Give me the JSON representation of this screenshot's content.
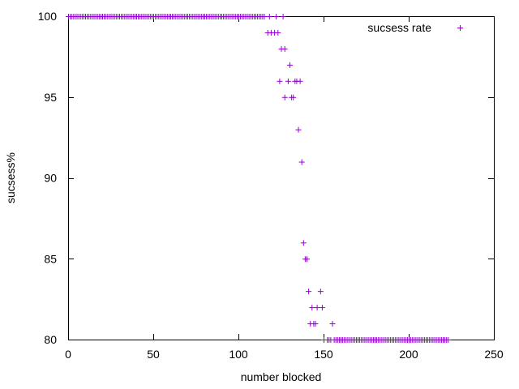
{
  "chart_data": {
    "type": "scatter",
    "xlabel": "number blocked",
    "ylabel": "sucsess%",
    "xlim": [
      0,
      250
    ],
    "ylim": [
      80,
      100
    ],
    "xticks": [
      0,
      50,
      100,
      150,
      200,
      250
    ],
    "yticks": [
      80,
      85,
      90,
      95,
      100
    ],
    "grid": false,
    "legend_position": "top-right",
    "colors": {
      "series": "#9400d3",
      "axis": "#000000",
      "background": "#ffffff"
    },
    "series": [
      {
        "name": "sucsess rate",
        "marker": "plus",
        "points": [
          [
            0,
            100
          ],
          [
            1,
            100
          ],
          [
            2,
            100
          ],
          [
            3,
            100
          ],
          [
            4,
            100
          ],
          [
            5,
            100
          ],
          [
            6,
            100
          ],
          [
            7,
            100
          ],
          [
            8,
            100
          ],
          [
            9,
            100
          ],
          [
            10,
            100
          ],
          [
            11,
            100
          ],
          [
            12,
            100
          ],
          [
            13,
            100
          ],
          [
            14,
            100
          ],
          [
            15,
            100
          ],
          [
            16,
            100
          ],
          [
            17,
            100
          ],
          [
            18,
            100
          ],
          [
            19,
            100
          ],
          [
            20,
            100
          ],
          [
            21,
            100
          ],
          [
            22,
            100
          ],
          [
            23,
            100
          ],
          [
            24,
            100
          ],
          [
            25,
            100
          ],
          [
            26,
            100
          ],
          [
            27,
            100
          ],
          [
            28,
            100
          ],
          [
            29,
            100
          ],
          [
            30,
            100
          ],
          [
            31,
            100
          ],
          [
            32,
            100
          ],
          [
            33,
            100
          ],
          [
            34,
            100
          ],
          [
            35,
            100
          ],
          [
            36,
            100
          ],
          [
            37,
            100
          ],
          [
            38,
            100
          ],
          [
            39,
            100
          ],
          [
            40,
            100
          ],
          [
            41,
            100
          ],
          [
            42,
            100
          ],
          [
            43,
            100
          ],
          [
            44,
            100
          ],
          [
            45,
            100
          ],
          [
            46,
            100
          ],
          [
            47,
            100
          ],
          [
            48,
            100
          ],
          [
            49,
            100
          ],
          [
            50,
            100
          ],
          [
            51,
            100
          ],
          [
            52,
            100
          ],
          [
            53,
            100
          ],
          [
            54,
            100
          ],
          [
            55,
            100
          ],
          [
            56,
            100
          ],
          [
            57,
            100
          ],
          [
            58,
            100
          ],
          [
            59,
            100
          ],
          [
            60,
            100
          ],
          [
            61,
            100
          ],
          [
            62,
            100
          ],
          [
            63,
            100
          ],
          [
            64,
            100
          ],
          [
            65,
            100
          ],
          [
            66,
            100
          ],
          [
            67,
            100
          ],
          [
            68,
            100
          ],
          [
            69,
            100
          ],
          [
            70,
            100
          ],
          [
            71,
            100
          ],
          [
            72,
            100
          ],
          [
            73,
            100
          ],
          [
            74,
            100
          ],
          [
            75,
            100
          ],
          [
            76,
            100
          ],
          [
            77,
            100
          ],
          [
            78,
            100
          ],
          [
            79,
            100
          ],
          [
            80,
            100
          ],
          [
            81,
            100
          ],
          [
            82,
            100
          ],
          [
            83,
            100
          ],
          [
            84,
            100
          ],
          [
            85,
            100
          ],
          [
            86,
            100
          ],
          [
            87,
            100
          ],
          [
            88,
            100
          ],
          [
            89,
            100
          ],
          [
            90,
            100
          ],
          [
            91,
            100
          ],
          [
            92,
            100
          ],
          [
            93,
            100
          ],
          [
            94,
            100
          ],
          [
            95,
            100
          ],
          [
            96,
            100
          ],
          [
            97,
            100
          ],
          [
            98,
            100
          ],
          [
            99,
            100
          ],
          [
            100,
            100
          ],
          [
            101,
            100
          ],
          [
            102,
            100
          ],
          [
            103,
            100
          ],
          [
            104,
            100
          ],
          [
            105,
            100
          ],
          [
            106,
            100
          ],
          [
            107,
            100
          ],
          [
            108,
            100
          ],
          [
            109,
            100
          ],
          [
            110,
            100
          ],
          [
            111,
            100
          ],
          [
            112,
            100
          ],
          [
            113,
            100
          ],
          [
            114,
            100
          ],
          [
            115,
            100
          ],
          [
            118,
            100
          ],
          [
            122,
            100
          ],
          [
            126,
            100
          ],
          [
            117,
            99
          ],
          [
            119,
            99
          ],
          [
            121,
            99
          ],
          [
            123,
            99
          ],
          [
            125,
            98
          ],
          [
            127,
            98
          ],
          [
            130,
            97
          ],
          [
            124,
            96
          ],
          [
            129,
            96
          ],
          [
            133,
            96
          ],
          [
            134,
            96
          ],
          [
            136,
            96
          ],
          [
            127,
            95
          ],
          [
            131,
            95
          ],
          [
            132,
            95
          ],
          [
            135,
            93
          ],
          [
            137,
            91
          ],
          [
            138,
            86
          ],
          [
            139,
            85
          ],
          [
            140,
            85
          ],
          [
            141,
            83
          ],
          [
            148,
            83
          ],
          [
            143,
            82
          ],
          [
            146,
            82
          ],
          [
            149,
            82
          ],
          [
            142,
            81
          ],
          [
            144,
            81
          ],
          [
            145,
            81
          ],
          [
            155,
            81
          ],
          [
            150,
            80
          ],
          [
            152,
            80
          ],
          [
            153,
            80
          ],
          [
            154,
            80
          ],
          [
            156,
            80
          ],
          [
            157,
            80
          ],
          [
            158,
            80
          ],
          [
            159,
            80
          ],
          [
            160,
            80
          ],
          [
            161,
            80
          ],
          [
            162,
            80
          ],
          [
            163,
            80
          ],
          [
            164,
            80
          ],
          [
            165,
            80
          ],
          [
            166,
            80
          ],
          [
            167,
            80
          ],
          [
            168,
            80
          ],
          [
            169,
            80
          ],
          [
            170,
            80
          ],
          [
            171,
            80
          ],
          [
            172,
            80
          ],
          [
            173,
            80
          ],
          [
            174,
            80
          ],
          [
            175,
            80
          ],
          [
            176,
            80
          ],
          [
            177,
            80
          ],
          [
            178,
            80
          ],
          [
            179,
            80
          ],
          [
            180,
            80
          ],
          [
            181,
            80
          ],
          [
            182,
            80
          ],
          [
            183,
            80
          ],
          [
            184,
            80
          ],
          [
            185,
            80
          ],
          [
            186,
            80
          ],
          [
            187,
            80
          ],
          [
            188,
            80
          ],
          [
            189,
            80
          ],
          [
            190,
            80
          ],
          [
            191,
            80
          ],
          [
            192,
            80
          ],
          [
            193,
            80
          ],
          [
            194,
            80
          ],
          [
            195,
            80
          ],
          [
            196,
            80
          ],
          [
            197,
            80
          ],
          [
            198,
            80
          ],
          [
            199,
            80
          ],
          [
            200,
            80
          ],
          [
            201,
            80
          ],
          [
            202,
            80
          ],
          [
            203,
            80
          ],
          [
            204,
            80
          ],
          [
            205,
            80
          ],
          [
            206,
            80
          ],
          [
            207,
            80
          ],
          [
            208,
            80
          ],
          [
            209,
            80
          ],
          [
            210,
            80
          ],
          [
            211,
            80
          ],
          [
            212,
            80
          ],
          [
            213,
            80
          ],
          [
            214,
            80
          ],
          [
            215,
            80
          ],
          [
            216,
            80
          ],
          [
            217,
            80
          ],
          [
            218,
            80
          ],
          [
            219,
            80
          ],
          [
            220,
            80
          ],
          [
            221,
            80
          ],
          [
            222,
            80
          ],
          [
            223,
            80
          ]
        ]
      }
    ]
  }
}
